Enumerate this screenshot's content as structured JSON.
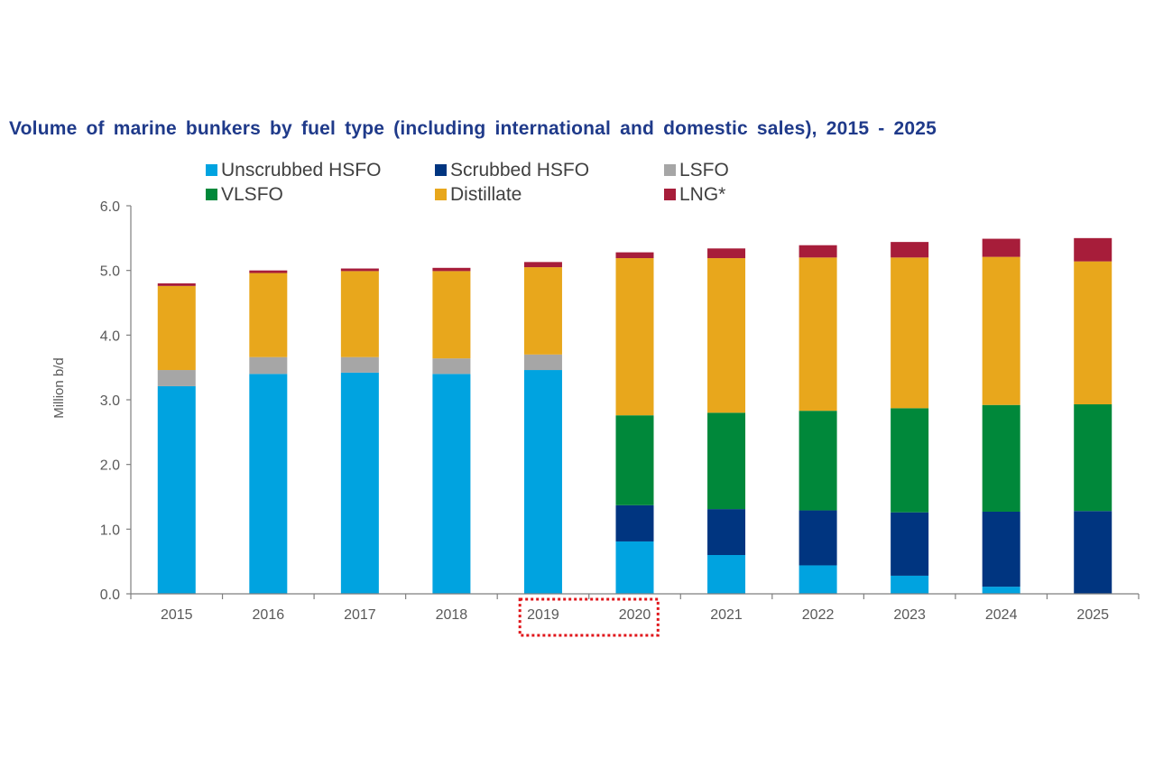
{
  "chart_data": {
    "type": "bar",
    "stacked": true,
    "title": "Volume of marine bunkers by fuel type (including international and domestic sales), 2015 - 2025",
    "ylabel": "Million b/d",
    "xlabel": "",
    "ylim": [
      0,
      6
    ],
    "yticks": [
      "0.0",
      "1.0",
      "2.0",
      "3.0",
      "4.0",
      "5.0",
      "6.0"
    ],
    "grid": false,
    "legend_position": "top",
    "categories": [
      "2015",
      "2016",
      "2017",
      "2018",
      "2019",
      "2020",
      "2021",
      "2022",
      "2023",
      "2024",
      "2025"
    ],
    "highlight": {
      "categories": [
        "2019",
        "2020"
      ],
      "style": "red dotted box"
    },
    "series": [
      {
        "name": "Unscrubbed HSFO",
        "color": "#00a3e0",
        "values": [
          3.21,
          3.4,
          3.42,
          3.4,
          3.46,
          0.81,
          0.6,
          0.44,
          0.28,
          0.11,
          0.0
        ]
      },
      {
        "name": "Scrubbed HSFO",
        "color": "#003580",
        "values": [
          0.0,
          0.0,
          0.0,
          0.0,
          0.0,
          0.56,
          0.71,
          0.85,
          0.98,
          1.16,
          1.28
        ]
      },
      {
        "name": "LSFO",
        "color": "#a6a6a6",
        "values": [
          0.25,
          0.26,
          0.24,
          0.24,
          0.24,
          0.0,
          0.0,
          0.0,
          0.0,
          0.0,
          0.0
        ]
      },
      {
        "name": "VLSFO",
        "color": "#00883a",
        "values": [
          0.0,
          0.0,
          0.0,
          0.0,
          0.0,
          1.39,
          1.49,
          1.54,
          1.61,
          1.65,
          1.65
        ]
      },
      {
        "name": "Distillate",
        "color": "#e8a71c",
        "values": [
          1.3,
          1.3,
          1.33,
          1.35,
          1.35,
          2.43,
          2.39,
          2.37,
          2.33,
          2.29,
          2.21
        ]
      },
      {
        "name": "LNG*",
        "color": "#a71d3a",
        "values": [
          0.04,
          0.04,
          0.04,
          0.05,
          0.08,
          0.09,
          0.15,
          0.19,
          0.24,
          0.28,
          0.36
        ]
      }
    ]
  }
}
